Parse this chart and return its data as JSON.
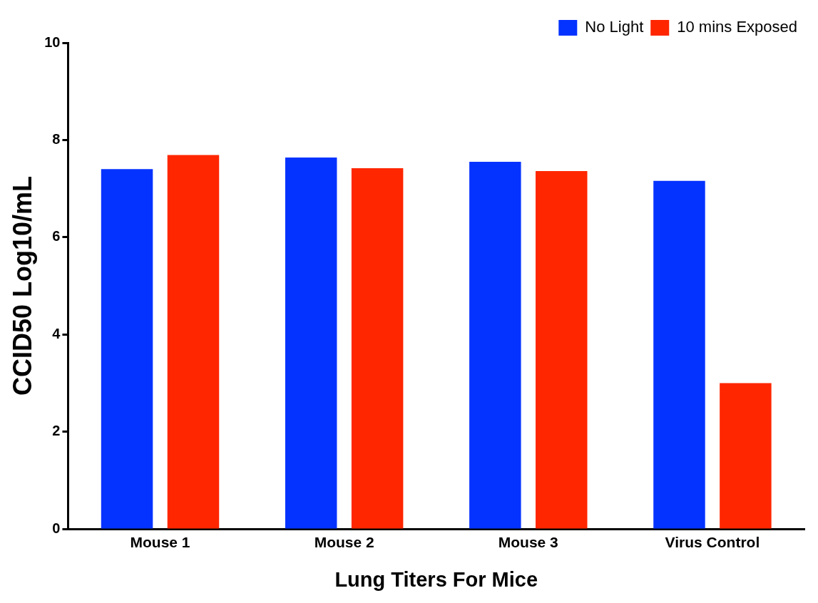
{
  "chart_data": {
    "type": "bar",
    "xlabel": "Lung Titers For Mice",
    "ylabel": "CCID50 Log10/mL",
    "categories": [
      "Mouse 1",
      "Mouse 2",
      "Mouse 3",
      "Virus Control"
    ],
    "series": [
      {
        "name": "No Light",
        "color": "#0433ff",
        "values": [
          7.4,
          7.64,
          7.55,
          7.16
        ]
      },
      {
        "name": "10 mins Exposed",
        "color": "#ff2600",
        "values": [
          7.69,
          7.42,
          7.36,
          3.0
        ]
      }
    ],
    "ylim": [
      0,
      10
    ],
    "yticks": [
      0,
      2,
      4,
      6,
      8,
      10
    ],
    "grid": false,
    "legend": "top right"
  }
}
